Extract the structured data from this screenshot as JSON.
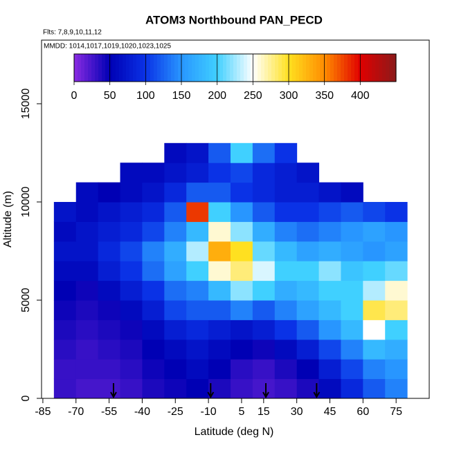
{
  "chart_data": {
    "type": "heatmap",
    "title": "ATOM3 Northbound PAN_PECD",
    "subtitle": "Flts: 7,8,9,10,11,12",
    "annotation": "MMDD: 1014,1017,1019,1020,1023,1025",
    "x_label": "Latitude (deg N)",
    "y_label": "Altitude (m)",
    "xlim": [
      -85.6,
      90
    ],
    "xticks": [
      -85,
      -70,
      -55,
      -40,
      -25,
      -10,
      5,
      15,
      30,
      45,
      60,
      75
    ],
    "ylim": [
      0,
      18240
    ],
    "yticks": [
      0,
      5000,
      10000,
      15000
    ],
    "lat_bins": [
      -80,
      -70,
      -60,
      -50,
      -40,
      -30,
      -20,
      -10,
      0,
      10,
      20,
      30,
      40,
      50,
      60,
      70,
      80
    ],
    "alt_bins": [
      0,
      1000,
      2000,
      3000,
      4000,
      5000,
      6000,
      7000,
      8000,
      9000,
      10000,
      11000,
      12000,
      13000
    ],
    "values": [
      [
        30,
        25,
        25,
        30,
        40,
        45,
        50,
        40,
        30,
        25,
        30,
        40,
        60,
        90,
        120,
        140
      ],
      [
        30,
        30,
        30,
        35,
        45,
        50,
        60,
        50,
        35,
        30,
        40,
        50,
        80,
        110,
        140,
        150
      ],
      [
        35,
        30,
        35,
        40,
        50,
        60,
        70,
        60,
        50,
        45,
        60,
        80,
        110,
        140,
        180,
        170
      ],
      [
        40,
        35,
        40,
        45,
        60,
        80,
        90,
        80,
        70,
        80,
        100,
        120,
        150,
        180,
        250,
        200
      ],
      [
        45,
        40,
        45,
        60,
        80,
        110,
        120,
        120,
        140,
        120,
        140,
        160,
        180,
        200,
        290,
        280
      ],
      [
        50,
        45,
        60,
        80,
        100,
        130,
        140,
        180,
        220,
        200,
        170,
        180,
        200,
        200,
        230,
        260
      ],
      [
        60,
        60,
        80,
        100,
        130,
        160,
        200,
        260,
        280,
        240,
        200,
        200,
        220,
        190,
        200,
        210
      ],
      [
        70,
        70,
        90,
        110,
        140,
        170,
        230,
        330,
        300,
        210,
        180,
        160,
        170,
        160,
        150,
        160
      ],
      [
        60,
        70,
        80,
        90,
        110,
        140,
        180,
        260,
        220,
        170,
        140,
        130,
        140,
        150,
        160,
        150
      ],
      [
        70,
        60,
        70,
        80,
        90,
        120,
        380,
        200,
        150,
        120,
        100,
        100,
        110,
        120,
        110,
        100
      ],
      [
        null,
        60,
        50,
        60,
        70,
        90,
        120,
        120,
        100,
        90,
        80,
        80,
        70,
        60,
        null,
        null
      ],
      [
        null,
        null,
        null,
        60,
        60,
        70,
        80,
        100,
        110,
        90,
        80,
        70,
        null,
        null,
        null,
        null
      ],
      [
        null,
        null,
        null,
        null,
        null,
        60,
        70,
        120,
        200,
        130,
        100,
        null,
        null,
        null,
        null,
        null
      ]
    ],
    "arrow_lat": [
      -53,
      -9,
      16,
      39
    ],
    "colorbar": {
      "lim": [
        0,
        450
      ],
      "ticks": [
        0,
        50,
        100,
        150,
        200,
        250,
        300,
        350,
        400
      ],
      "colors": [
        "#8a2be2",
        "#0000b4",
        "#0a32e6",
        "#2896ff",
        "#40d0ff",
        "#ffffff",
        "#ffe020",
        "#ff8c00",
        "#e00000",
        "#8b1a1a"
      ]
    }
  }
}
